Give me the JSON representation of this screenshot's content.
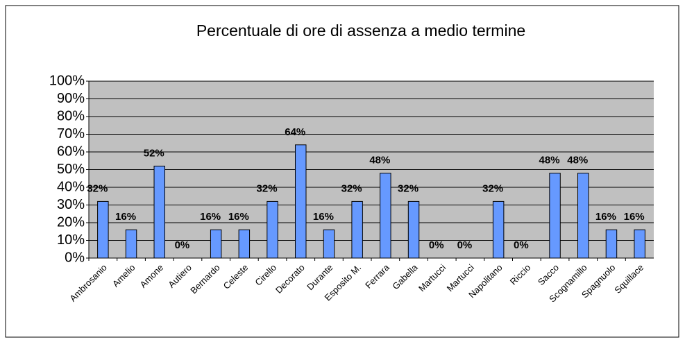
{
  "chart_data": {
    "type": "bar",
    "title": "Percentuale di ore di assenza a medio termine",
    "categories": [
      "Ambrosanio",
      "Amelio",
      "Amone",
      "Autiero",
      "Bernardo",
      "Celeste",
      "Cirello",
      "Decorato",
      "Durante",
      "Esposito M.",
      "Ferrara",
      "Gabella",
      "Martucci",
      "Martucci",
      "Napolitano",
      "Riccio",
      "Sacco",
      "Scognamillo",
      "Spagnuolo",
      "Squillace"
    ],
    "values": [
      32,
      16,
      52,
      0,
      16,
      16,
      32,
      64,
      16,
      32,
      48,
      32,
      0,
      0,
      32,
      0,
      48,
      48,
      16,
      16
    ],
    "value_labels": [
      "32%",
      "16%",
      "52%",
      "0%",
      "16%",
      "16%",
      "32%",
      "64%",
      "16%",
      "32%",
      "48%",
      "32%",
      "0%",
      "0%",
      "32%",
      "0%",
      "48%",
      "48%",
      "16%",
      "16%"
    ],
    "color": "#6699ff",
    "ylim": [
      0,
      100
    ],
    "yticks": [
      {
        "value": 0,
        "label": "0%"
      },
      {
        "value": 10,
        "label": "10%"
      },
      {
        "value": 20,
        "label": "20%"
      },
      {
        "value": 30,
        "label": "30%"
      },
      {
        "value": 40,
        "label": "40%"
      },
      {
        "value": 50,
        "label": "50%"
      },
      {
        "value": 60,
        "label": "60%"
      },
      {
        "value": 70,
        "label": "70%"
      },
      {
        "value": 80,
        "label": "80%"
      },
      {
        "value": 90,
        "label": "90%"
      },
      {
        "value": 100,
        "label": "100%"
      }
    ],
    "grid": true
  }
}
